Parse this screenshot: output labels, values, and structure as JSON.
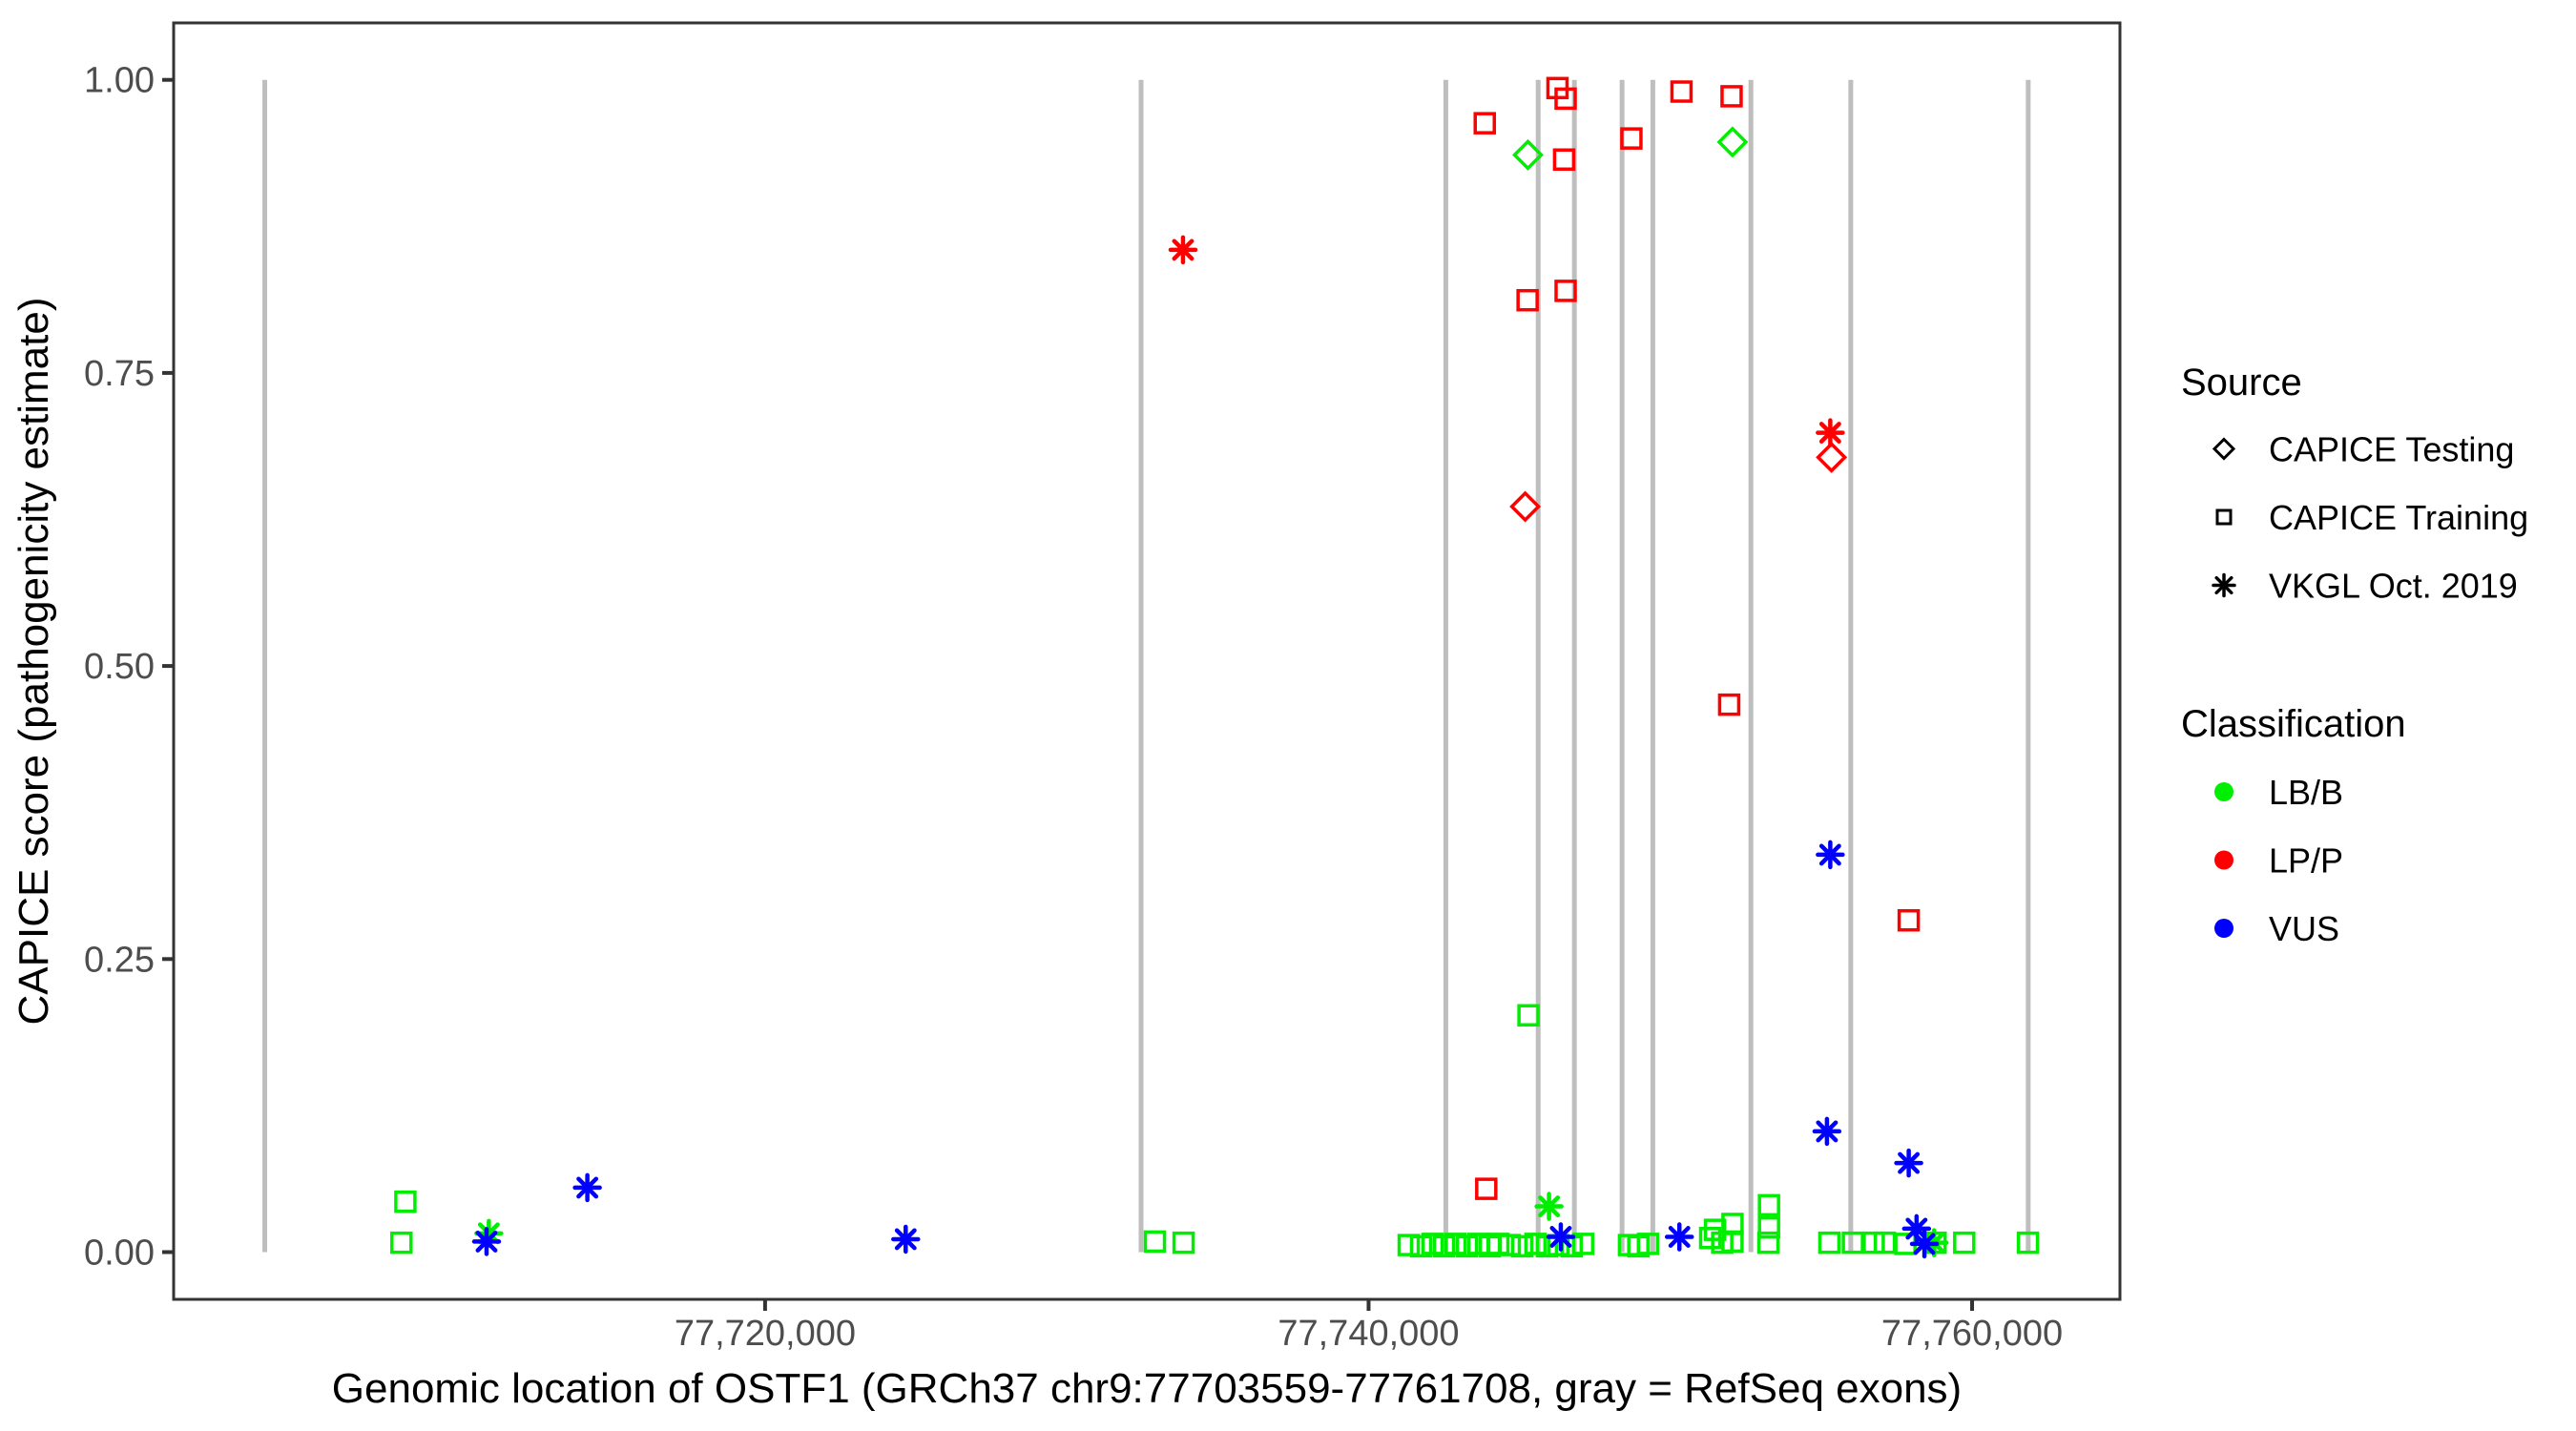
{
  "figure": {
    "background": "#FFFFFF"
  },
  "axes": {
    "x": {
      "title": "Genomic location of OSTF1 (GRCh37 chr9:77703559-77761708, gray = RefSeq exons)",
      "domain": [
        77700400,
        77764900
      ],
      "ticks": [
        {
          "value": 77720000,
          "label": "77,720,000"
        },
        {
          "value": 77740000,
          "label": "77,740,000"
        },
        {
          "value": 77760000,
          "label": "77,760,000"
        }
      ]
    },
    "y": {
      "title": "CAPICE score (pathogenicity estimate)",
      "domain": [
        -0.0403,
        1.0486
      ],
      "ticks": [
        {
          "value": 0.0,
          "label": "0.00"
        },
        {
          "value": 0.25,
          "label": "0.25"
        },
        {
          "value": 0.5,
          "label": "0.50"
        },
        {
          "value": 0.75,
          "label": "0.75"
        },
        {
          "value": 1.0,
          "label": "1.00"
        }
      ]
    }
  },
  "style": {
    "panel_border_color": "#333333",
    "tick_color": "#333333",
    "tick_label_color": "#4D4D4D",
    "exon_color": "#BEBEBE"
  },
  "legend": {
    "source": {
      "title": "Source",
      "items": [
        {
          "label": "CAPICE Testing",
          "shape": "diamond"
        },
        {
          "label": "CAPICE Training",
          "shape": "square"
        },
        {
          "label": "VKGL Oct. 2019",
          "shape": "asterisk"
        }
      ]
    },
    "classification": {
      "title": "Classification",
      "items": [
        {
          "label": "LB/B",
          "color": "#00EE00"
        },
        {
          "label": "LP/P",
          "color": "#FF0000"
        },
        {
          "label": "VUS",
          "color": "#0000FF"
        }
      ]
    }
  },
  "chart_data": {
    "type": "scatter",
    "title": "",
    "xlabel": "Genomic location of OSTF1 (GRCh37 chr9:77703559-77761708, gray = RefSeq exons)",
    "ylabel": "CAPICE score (pathogenicity estimate)",
    "xlim": [
      77700400,
      77764900
    ],
    "ylim": [
      -0.0403,
      1.0486
    ],
    "grid": false,
    "legend_position": "right",
    "classification_colors": {
      "LB/B": "#00EE00",
      "LP/P": "#FF0000",
      "VUS": "#0000FF"
    },
    "exon_segments": {
      "color": "#BEBEBE",
      "score_span": [
        0.0,
        1.0
      ],
      "positions": [
        77703420,
        77732460,
        77742560,
        77745620,
        77746820,
        77748400,
        77749420,
        77752670,
        77755980,
        77761860
      ]
    },
    "series": [
      {
        "name": "CAPICE Training",
        "shape": "square",
        "points": [
          {
            "pos": 77743850,
            "score": 0.963,
            "cls": "LP/P"
          },
          {
            "pos": 77746260,
            "score": 0.993,
            "cls": "LP/P"
          },
          {
            "pos": 77746530,
            "score": 0.984,
            "cls": "LP/P"
          },
          {
            "pos": 77746480,
            "score": 0.932,
            "cls": "LP/P"
          },
          {
            "pos": 77748710,
            "score": 0.95,
            "cls": "LP/P"
          },
          {
            "pos": 77750370,
            "score": 0.99,
            "cls": "LP/P"
          },
          {
            "pos": 77752030,
            "score": 0.986,
            "cls": "LP/P"
          },
          {
            "pos": 77745270,
            "score": 0.812,
            "cls": "LP/P"
          },
          {
            "pos": 77746530,
            "score": 0.82,
            "cls": "LP/P"
          },
          {
            "pos": 77751950,
            "score": 0.467,
            "cls": "LP/P"
          },
          {
            "pos": 77757900,
            "score": 0.283,
            "cls": "LP/P"
          },
          {
            "pos": 77743900,
            "score": 0.054,
            "cls": "LP/P"
          },
          {
            "pos": 77708080,
            "score": 0.043,
            "cls": "LB/B"
          },
          {
            "pos": 77707950,
            "score": 0.008,
            "cls": "LB/B"
          },
          {
            "pos": 77745300,
            "score": 0.202,
            "cls": "LB/B"
          },
          {
            "pos": 77732920,
            "score": 0.009,
            "cls": "LB/B"
          },
          {
            "pos": 77733870,
            "score": 0.008,
            "cls": "LB/B"
          },
          {
            "pos": 77741330,
            "score": 0.006,
            "cls": "LB/B"
          },
          {
            "pos": 77741740,
            "score": 0.005,
            "cls": "LB/B"
          },
          {
            "pos": 77742120,
            "score": 0.007,
            "cls": "LB/B"
          },
          {
            "pos": 77742500,
            "score": 0.005,
            "cls": "LB/B"
          },
          {
            "pos": 77742880,
            "score": 0.007,
            "cls": "LB/B"
          },
          {
            "pos": 77743260,
            "score": 0.005,
            "cls": "LB/B"
          },
          {
            "pos": 77743640,
            "score": 0.007,
            "cls": "LB/B"
          },
          {
            "pos": 77744020,
            "score": 0.005,
            "cls": "LB/B"
          },
          {
            "pos": 77744300,
            "score": 0.007,
            "cls": "LB/B"
          },
          {
            "pos": 77744680,
            "score": 0.006,
            "cls": "LB/B"
          },
          {
            "pos": 77745090,
            "score": 0.005,
            "cls": "LB/B"
          },
          {
            "pos": 77745530,
            "score": 0.007,
            "cls": "LB/B"
          },
          {
            "pos": 77745910,
            "score": 0.005,
            "cls": "LB/B"
          },
          {
            "pos": 77746290,
            "score": 0.006,
            "cls": "LB/B"
          },
          {
            "pos": 77746730,
            "score": 0.005,
            "cls": "LB/B"
          },
          {
            "pos": 77747110,
            "score": 0.007,
            "cls": "LB/B"
          },
          {
            "pos": 77748630,
            "score": 0.006,
            "cls": "LB/B"
          },
          {
            "pos": 77748940,
            "score": 0.005,
            "cls": "LB/B"
          },
          {
            "pos": 77749260,
            "score": 0.007,
            "cls": "LB/B"
          },
          {
            "pos": 77751320,
            "score": 0.012,
            "cls": "LB/B"
          },
          {
            "pos": 77751480,
            "score": 0.019,
            "cls": "LB/B"
          },
          {
            "pos": 77751720,
            "score": 0.008,
            "cls": "LB/B"
          },
          {
            "pos": 77752060,
            "score": 0.024,
            "cls": "LB/B"
          },
          {
            "pos": 77752060,
            "score": 0.009,
            "cls": "LB/B"
          },
          {
            "pos": 77753270,
            "score": 0.04,
            "cls": "LB/B"
          },
          {
            "pos": 77753270,
            "score": 0.021,
            "cls": "LB/B"
          },
          {
            "pos": 77753250,
            "score": 0.008,
            "cls": "LB/B"
          },
          {
            "pos": 77755270,
            "score": 0.008,
            "cls": "LB/B"
          },
          {
            "pos": 77756050,
            "score": 0.008,
            "cls": "LB/B"
          },
          {
            "pos": 77756740,
            "score": 0.008,
            "cls": "LB/B"
          },
          {
            "pos": 77757110,
            "score": 0.008,
            "cls": "LB/B"
          },
          {
            "pos": 77757790,
            "score": 0.007,
            "cls": "LB/B"
          },
          {
            "pos": 77758790,
            "score": 0.008,
            "cls": "LB/B"
          },
          {
            "pos": 77759740,
            "score": 0.008,
            "cls": "LB/B"
          },
          {
            "pos": 77761850,
            "score": 0.008,
            "cls": "LB/B"
          }
        ]
      },
      {
        "name": "CAPICE Testing",
        "shape": "diamond",
        "points": [
          {
            "pos": 77745280,
            "score": 0.936,
            "cls": "LB/B"
          },
          {
            "pos": 77752060,
            "score": 0.947,
            "cls": "LB/B"
          },
          {
            "pos": 77745190,
            "score": 0.636,
            "cls": "LP/P"
          },
          {
            "pos": 77755340,
            "score": 0.678,
            "cls": "LP/P"
          }
        ]
      },
      {
        "name": "VKGL Oct. 2019",
        "shape": "asterisk",
        "points": [
          {
            "pos": 77710845,
            "score": 0.016,
            "cls": "LB/B"
          },
          {
            "pos": 77710770,
            "score": 0.009,
            "cls": "VUS"
          },
          {
            "pos": 77714110,
            "score": 0.055,
            "cls": "VUS"
          },
          {
            "pos": 77724660,
            "score": 0.011,
            "cls": "VUS"
          },
          {
            "pos": 77733850,
            "score": 0.855,
            "cls": "LP/P"
          },
          {
            "pos": 77755300,
            "score": 0.699,
            "cls": "LP/P"
          },
          {
            "pos": 77755300,
            "score": 0.339,
            "cls": "VUS"
          },
          {
            "pos": 77755190,
            "score": 0.103,
            "cls": "VUS"
          },
          {
            "pos": 77757900,
            "score": 0.076,
            "cls": "VUS"
          },
          {
            "pos": 77745980,
            "score": 0.039,
            "cls": "LB/B"
          },
          {
            "pos": 77746370,
            "score": 0.013,
            "cls": "VUS"
          },
          {
            "pos": 77750300,
            "score": 0.013,
            "cls": "VUS"
          },
          {
            "pos": 77758160,
            "score": 0.02,
            "cls": "VUS"
          },
          {
            "pos": 77758740,
            "score": 0.008,
            "cls": "LB/B"
          },
          {
            "pos": 77758420,
            "score": 0.007,
            "cls": "VUS"
          }
        ]
      }
    ]
  }
}
